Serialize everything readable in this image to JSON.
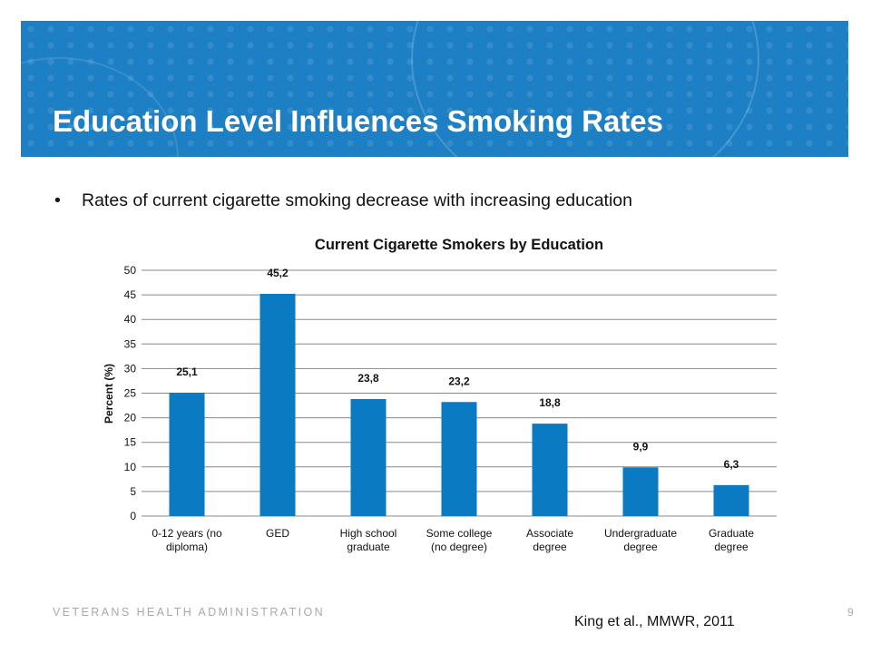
{
  "slide": {
    "title": "Education Level Influences Smoking Rates",
    "bullet": "Rates of current cigarette smoking decrease with increasing education",
    "footer": "VETERANS HEALTH ADMINISTRATION",
    "page_number": "9",
    "citation": "King et al., MMWR, 2011",
    "banner_color": "#1d7fc4"
  },
  "chart_data": {
    "type": "bar",
    "title": "Current Cigarette Smokers by Education",
    "xlabel": "",
    "ylabel": "Percent (%)",
    "ylim": [
      0,
      50
    ],
    "yticks": [
      "0",
      "5",
      "10",
      "15",
      "20",
      "25",
      "30",
      "35",
      "40",
      "45",
      "50"
    ],
    "grid": true,
    "bar_color": "#0a7bc2",
    "categories": [
      [
        "0-12 years (no",
        "diploma)"
      ],
      [
        "GED"
      ],
      [
        "High school",
        "graduate"
      ],
      [
        "Some college",
        "(no degree)"
      ],
      [
        "Associate",
        "degree"
      ],
      [
        "Undergraduate",
        "degree"
      ],
      [
        "Graduate",
        "degree"
      ]
    ],
    "values": [
      25.1,
      45.2,
      23.8,
      23.2,
      18.8,
      9.9,
      6.3
    ],
    "data_labels": [
      "25,1",
      "45,2",
      "23,8",
      "23,2",
      "18,8",
      "9,9",
      "6,3"
    ]
  }
}
